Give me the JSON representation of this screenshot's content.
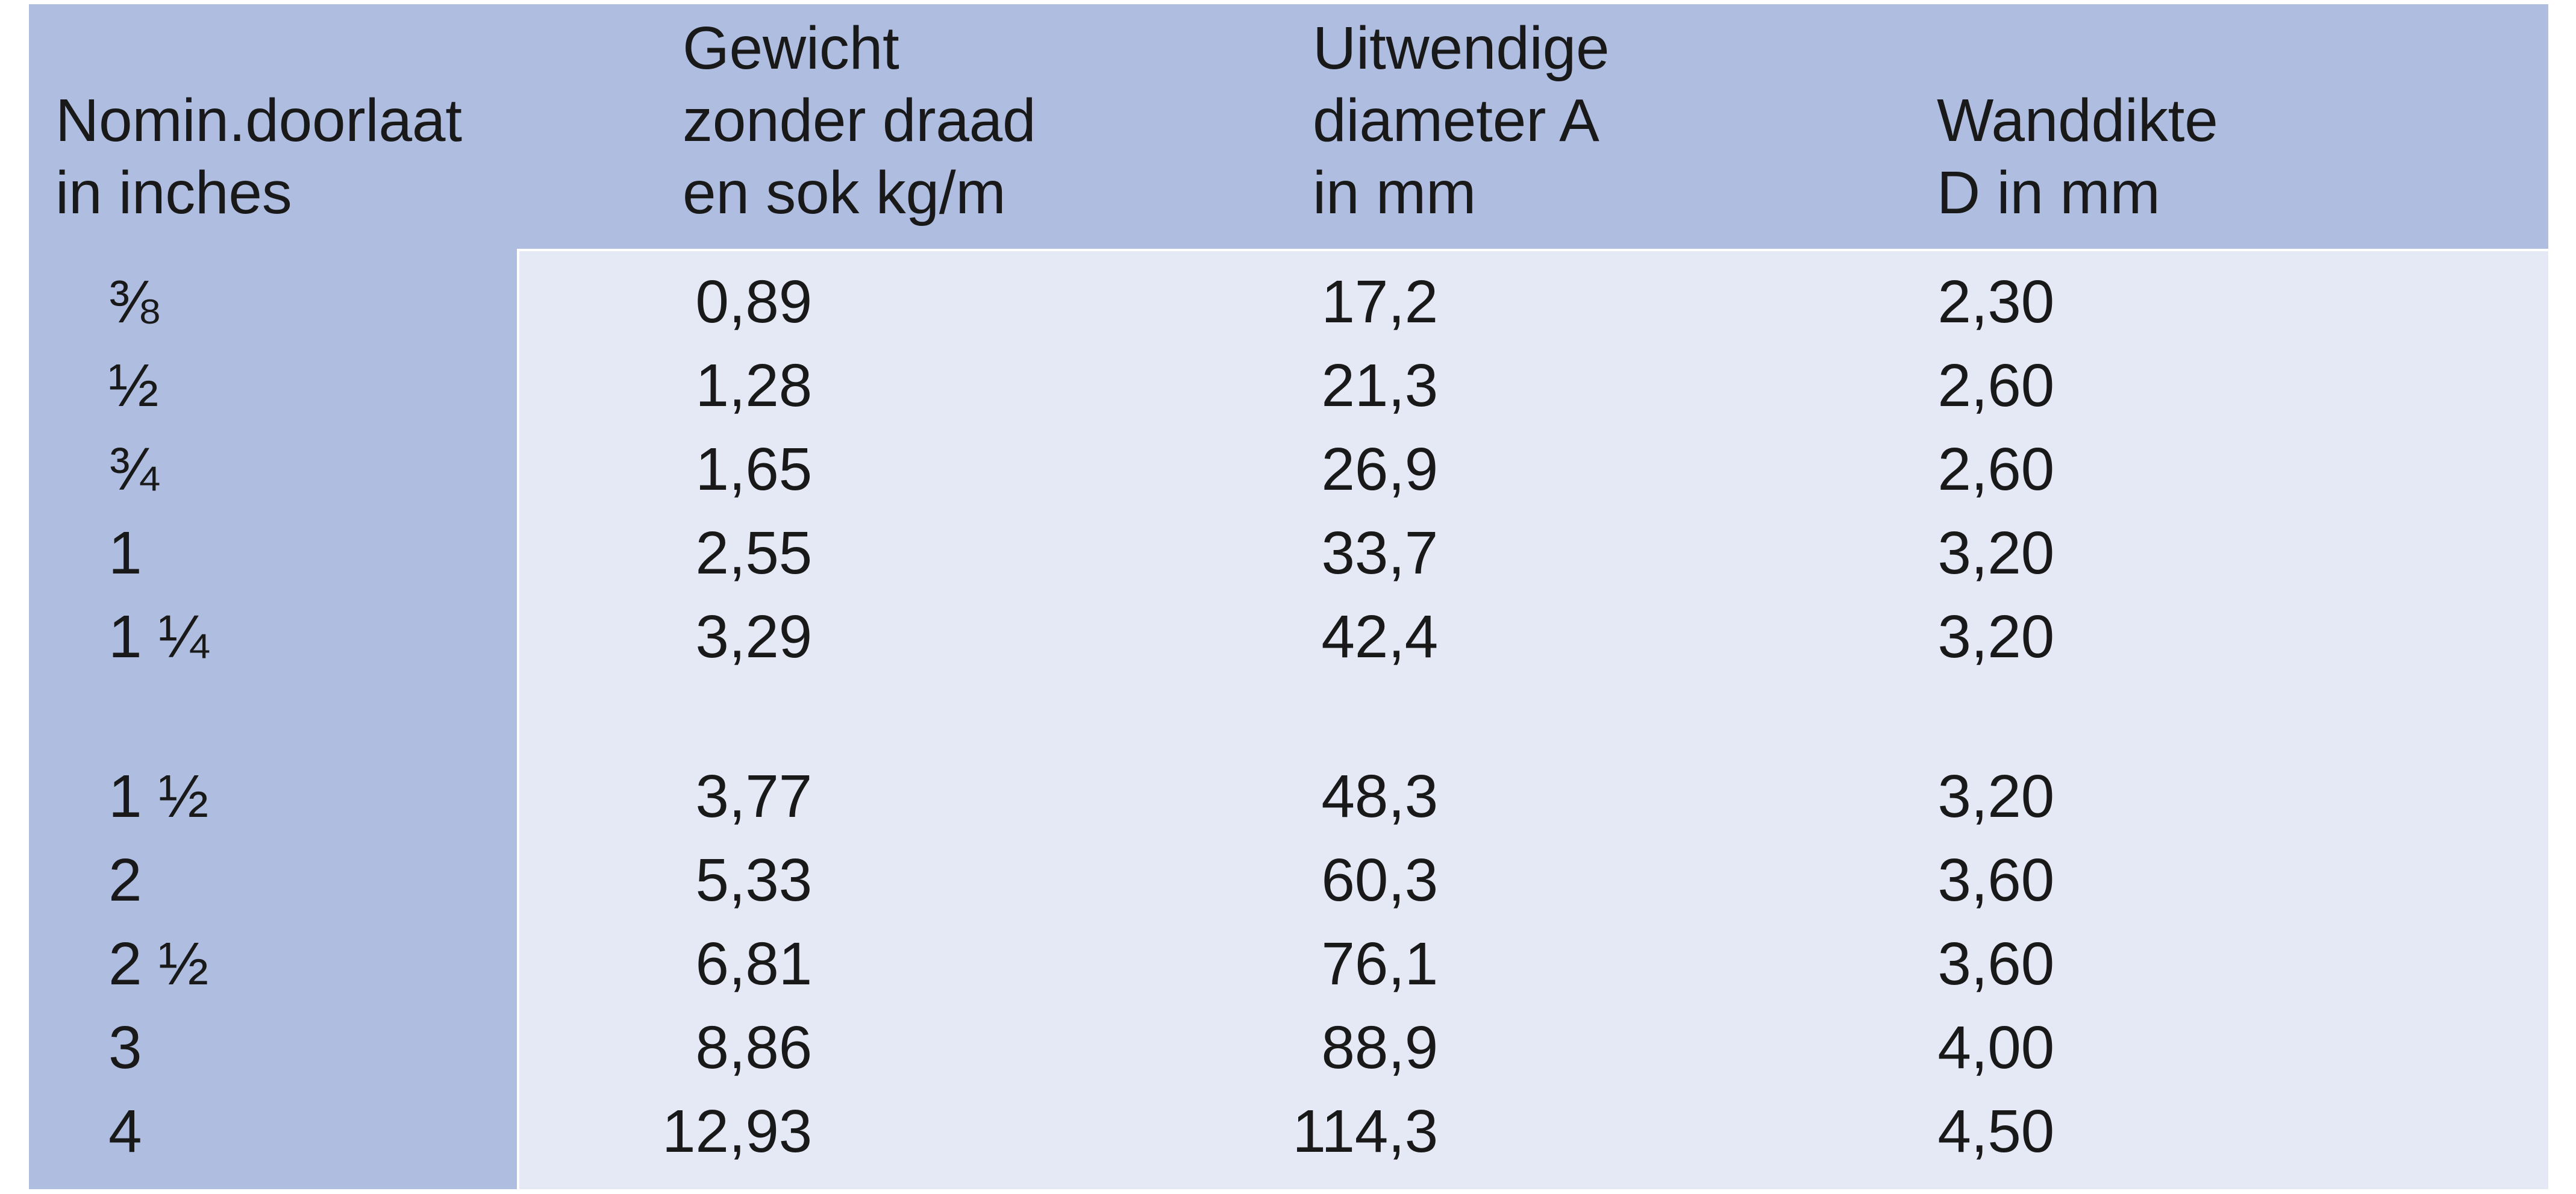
{
  "table": {
    "title_context": "pipe dimensions table (Dutch)",
    "colors": {
      "header_bg": "#afbee0",
      "first_column_bg": "#afbee0",
      "body_bg": "#e4e9f5",
      "text": "#191919",
      "page_bg": "#ffffff"
    },
    "header": {
      "columns": [
        {
          "id": "nominal-bore",
          "lines": [
            "Nomin.doorlaat",
            "in inches"
          ]
        },
        {
          "id": "weight",
          "lines": [
            "Gewicht",
            "zonder draad",
            "en sok kg/m"
          ]
        },
        {
          "id": "outer-diameter",
          "lines": [
            "Uitwendige",
            "diameter A",
            "in mm"
          ]
        },
        {
          "id": "wall-thickness",
          "lines": [
            "Wanddikte",
            "D in mm"
          ]
        }
      ]
    },
    "rows": [
      {
        "size": "⅜",
        "weight": "0,89",
        "diameter": "17,2",
        "wall": "2,30"
      },
      {
        "size": "½",
        "weight": "1,28",
        "diameter": "21,3",
        "wall": "2,60"
      },
      {
        "size": "¾",
        "weight": "1,65",
        "diameter": "26,9",
        "wall": "2,60"
      },
      {
        "size": "1",
        "weight": "2,55",
        "diameter": "33,7",
        "wall": "3,20"
      },
      {
        "size": "1 ¼",
        "weight": "3,29",
        "diameter": "42,4",
        "wall": "3,20"
      },
      {
        "size": "1 ½",
        "weight": "3,77",
        "diameter": "48,3",
        "wall": "3,20"
      },
      {
        "size": "2",
        "weight": "5,33",
        "diameter": "60,3",
        "wall": "3,60"
      },
      {
        "size": "2 ½",
        "weight": "6,81",
        "diameter": "76,1",
        "wall": "3,60"
      },
      {
        "size": "3",
        "weight": "8,86",
        "diameter": "88,9",
        "wall": "4,00"
      },
      {
        "size": "4",
        "weight": "12,93",
        "diameter": "114,3",
        "wall": "4,50"
      }
    ]
  }
}
